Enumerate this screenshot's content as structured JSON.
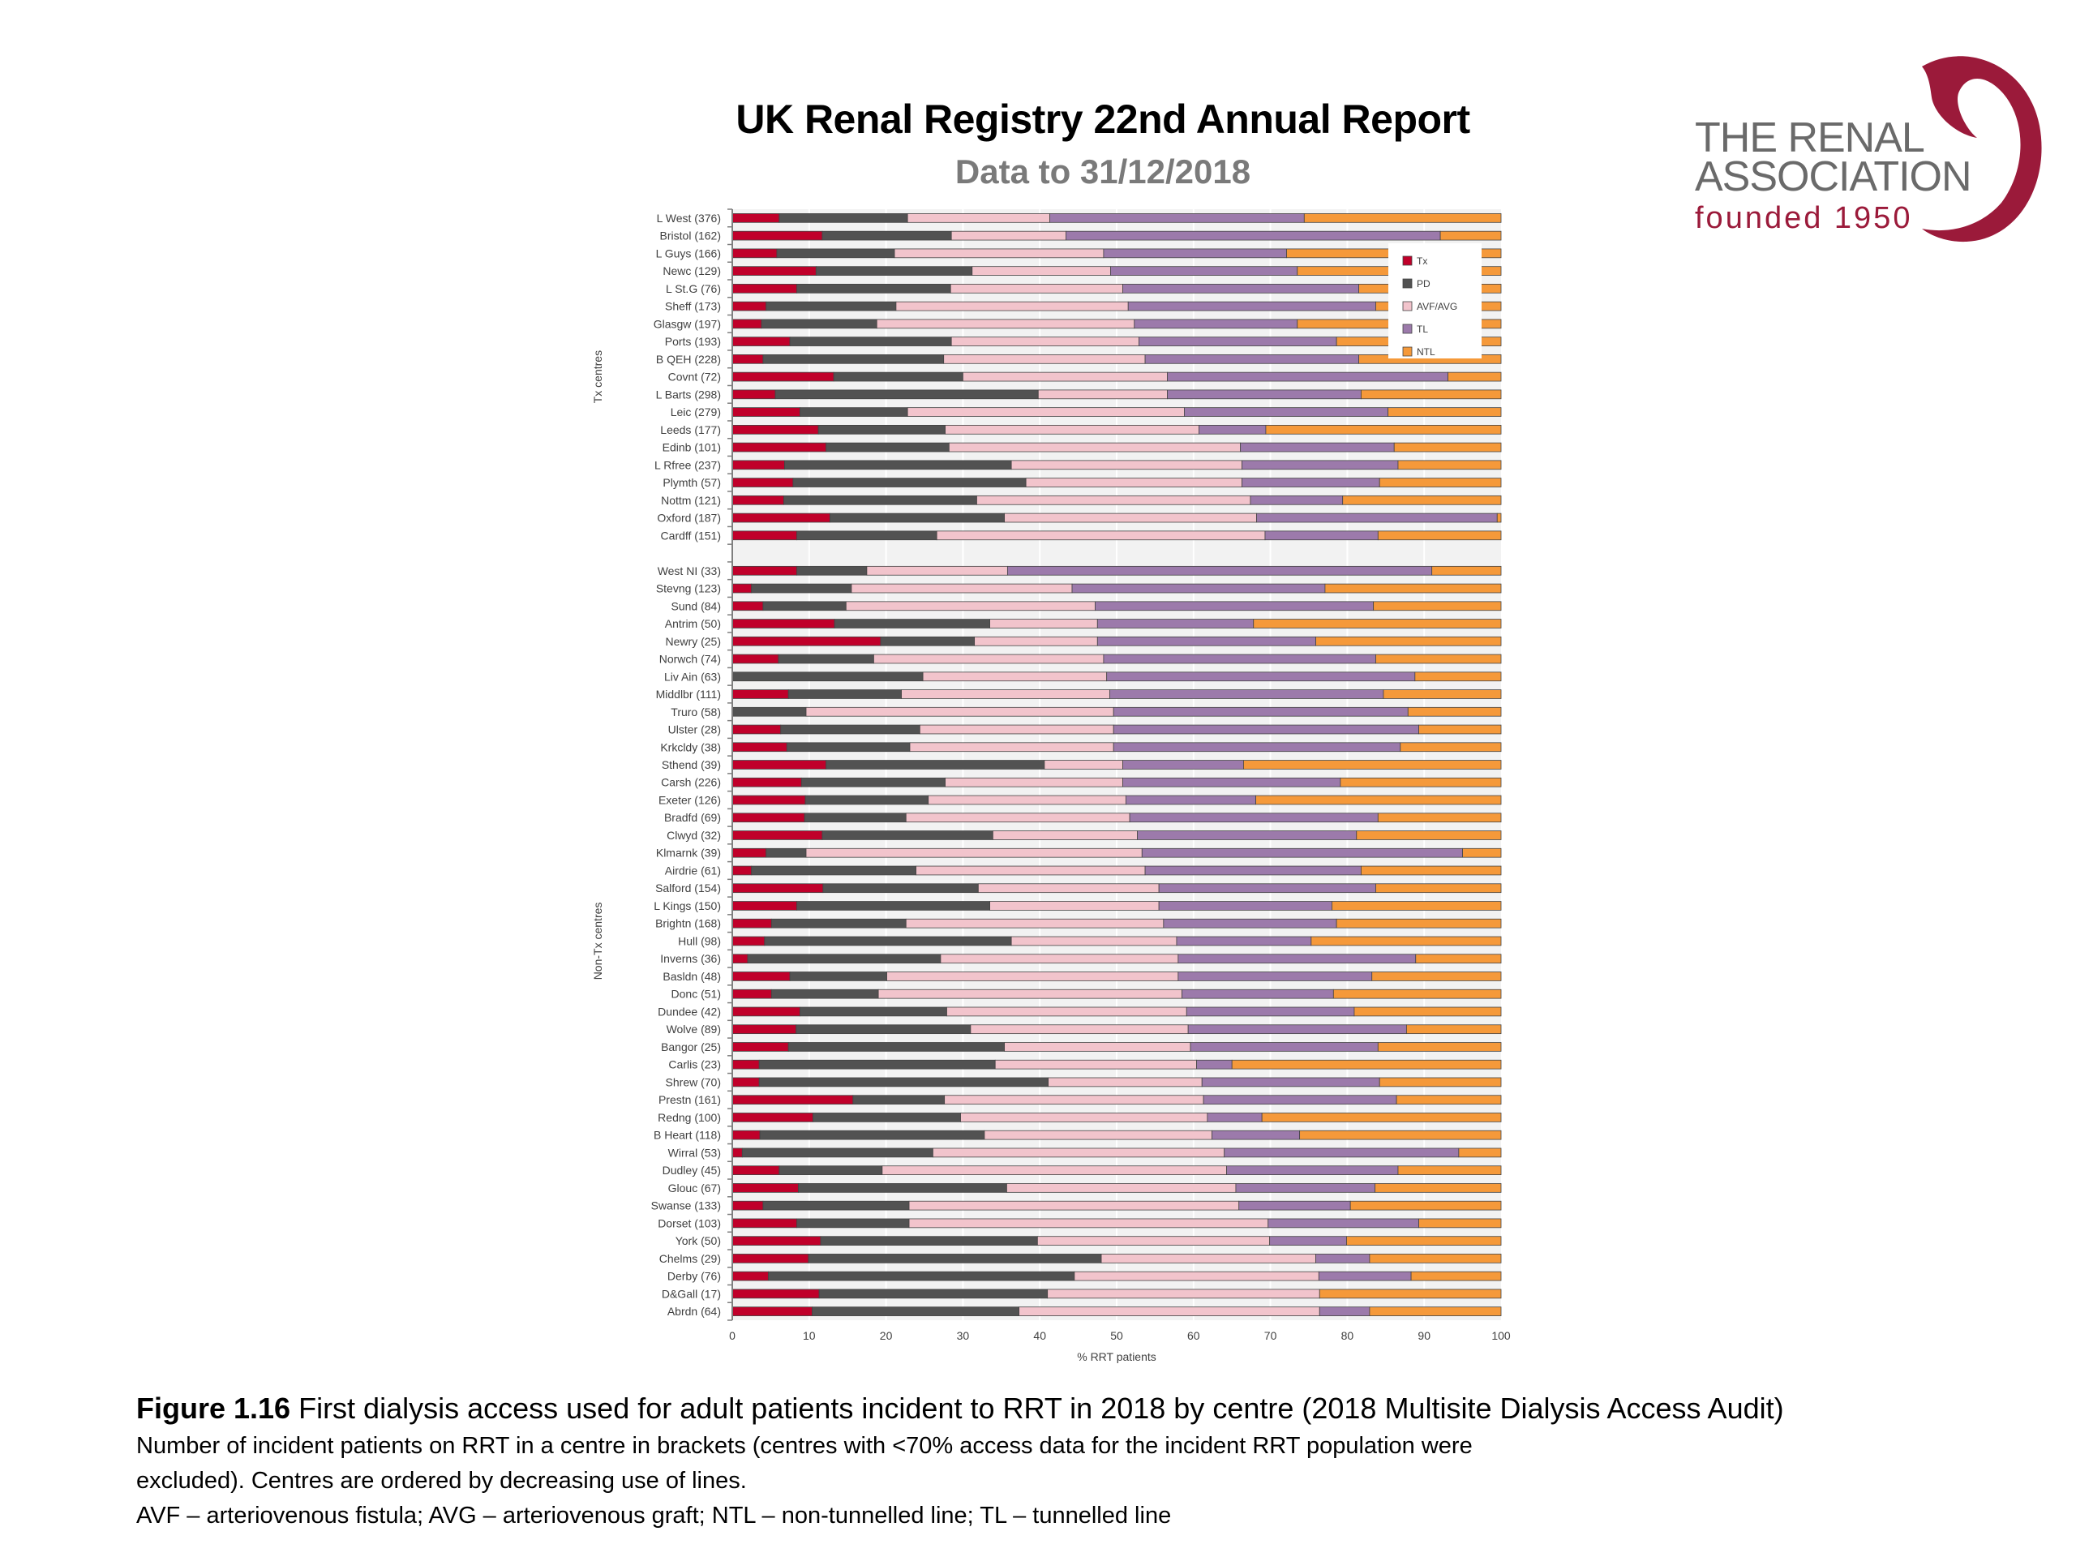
{
  "header": {
    "title": "UK Renal Registry 22nd Annual Report",
    "subtitle": "Data to 31/12/2018"
  },
  "logo": {
    "line1": "THE RENAL",
    "line2": "ASSOCIATION",
    "line3": "founded 1950",
    "icon": "kidney-swirl-icon",
    "brand_color": "#9b1a3a"
  },
  "caption": {
    "figure_label": "Figure 1.16",
    "figure_title": " First dialysis access used for adult patients incident to RRT in 2018 by centre (2018 Multisite Dialysis Access Audit)",
    "note_line1": "Number of incident patients on RRT in a centre in brackets (centres with <70% access data for the incident RRT population were",
    "note_line2": "excluded). Centres are ordered by decreasing use of lines.",
    "note_line3": "AVF – arteriovenous fistula; AVG – arteriovenous graft; NTL – non-tunnelled line; TL – tunnelled line"
  },
  "chart_data": {
    "type": "bar",
    "orientation": "horizontal",
    "stacked": true,
    "xlabel": "% RRT patients",
    "xlim": [
      0,
      100
    ],
    "xticks": [
      0,
      10,
      20,
      30,
      40,
      50,
      60,
      70,
      80,
      90,
      100
    ],
    "grid": true,
    "legend_position": "top-right",
    "series_names": [
      "Tx",
      "PD",
      "AVF/AVG",
      "TL",
      "NTL"
    ],
    "series_colors": [
      "#c0002a",
      "#525252",
      "#f2c4cc",
      "#9c7aab",
      "#f5993a"
    ],
    "groups": [
      {
        "label": "Tx centres",
        "categories": [
          "L West (376)",
          "Bristol (162)",
          "L Guys (166)",
          "Newc (129)",
          "L St.G (76)",
          "Sheff (173)",
          "Glasgw (197)",
          "Ports (193)",
          "B QEH (228)",
          "Covnt (72)",
          "L Barts (298)",
          "Leic (279)",
          "Leeds (177)",
          "Edinb (101)",
          "L Rfree (237)",
          "Plymth (57)",
          "Nottm (121)",
          "Oxford (187)",
          "Cardff (151)"
        ],
        "series": [
          {
            "name": "Tx",
            "values": [
              6.1,
              11.7,
              5.8,
              10.9,
              8.4,
              4.4,
              3.8,
              7.5,
              4.0,
              13.2,
              5.6,
              8.8,
              11.2,
              12.2,
              6.8,
              7.9,
              6.7,
              12.7,
              8.4
            ]
          },
          {
            "name": "PD",
            "values": [
              16.7,
              16.8,
              15.3,
              20.3,
              20.0,
              16.9,
              15.0,
              21.0,
              23.5,
              16.8,
              34.2,
              14.0,
              16.5,
              16.0,
              29.5,
              30.3,
              25.1,
              22.7,
              18.2
            ]
          },
          {
            "name": "AVF/AVG",
            "values": [
              18.5,
              14.9,
              27.2,
              18.0,
              22.4,
              30.2,
              33.5,
              24.4,
              26.2,
              26.6,
              16.8,
              36.0,
              33.0,
              37.9,
              30.0,
              28.1,
              35.6,
              32.8,
              42.7
            ]
          },
          {
            "name": "TL",
            "values": [
              33.1,
              48.7,
              23.8,
              24.3,
              30.7,
              32.2,
              21.2,
              25.7,
              27.8,
              36.5,
              25.2,
              26.5,
              8.7,
              20.0,
              20.3,
              17.9,
              12.0,
              31.3,
              14.7
            ]
          },
          {
            "name": "NTL",
            "values": [
              25.6,
              7.9,
              27.9,
              26.5,
              18.5,
              16.3,
              26.5,
              21.4,
              18.5,
              6.9,
              18.2,
              14.7,
              30.6,
              13.9,
              13.4,
              15.8,
              20.6,
              0.5,
              16.0
            ]
          }
        ]
      },
      {
        "label": "Non-Tx centres",
        "categories": [
          "West NI (33)",
          "Stevng (123)",
          "Sund (84)",
          "Antrim (50)",
          "Newry (25)",
          "Norwch (74)",
          "Liv Ain (63)",
          "Middlbr (111)",
          "Truro (58)",
          "Ulster (28)",
          "Krkcldy (38)",
          "Sthend (39)",
          "Carsh (226)",
          "Exeter (126)",
          "Bradfd (69)",
          "Clwyd (32)",
          "Klmarnk (39)",
          "Airdrie (61)",
          "Salford (154)",
          "L Kings (150)",
          "Brightn (168)",
          "Hull (98)",
          "Inverns (36)",
          "Basldn (48)",
          "Donc (51)",
          "Dundee (42)",
          "Wolve (89)",
          "Bangor (25)",
          "Carlis (23)",
          "Shrew (70)",
          "Prestn (161)",
          "Redng (100)",
          "B Heart (118)",
          "Wirral (53)",
          "Dudley (45)",
          "Glouc (67)",
          "Swanse (133)",
          "Dorset (103)",
          "York (50)",
          "Chelms (29)",
          "Derby (76)",
          "D&Gall (17)",
          "Abrdn (64)"
        ],
        "series": [
          {
            "name": "Tx",
            "values": [
              8.4,
              2.5,
              4.0,
              13.3,
              19.3,
              6.0,
              0.0,
              7.3,
              0.0,
              6.3,
              7.1,
              12.2,
              9.0,
              9.5,
              9.4,
              11.7,
              4.4,
              2.5,
              11.8,
              8.4,
              5.1,
              4.2,
              2.0,
              7.5,
              5.1,
              8.8,
              8.3,
              7.3,
              3.5,
              3.5,
              15.7,
              10.5,
              3.6,
              1.3,
              6.1,
              8.6,
              4.0,
              8.4,
              11.5,
              9.9,
              4.7,
              11.3,
              10.4
            ]
          },
          {
            "name": "PD",
            "values": [
              9.1,
              13.0,
              10.8,
              20.2,
              12.2,
              12.4,
              24.8,
              14.7,
              9.6,
              18.1,
              16.0,
              28.4,
              18.7,
              16.0,
              13.2,
              22.2,
              5.2,
              21.4,
              20.2,
              25.1,
              17.5,
              32.1,
              25.1,
              12.6,
              13.9,
              19.1,
              22.7,
              28.1,
              30.7,
              37.6,
              11.9,
              19.2,
              29.2,
              24.8,
              13.4,
              27.1,
              19.0,
              14.6,
              28.2,
              38.1,
              39.8,
              29.7,
              26.9
            ]
          },
          {
            "name": "AVF/AVG",
            "values": [
              18.3,
              28.7,
              32.4,
              14.0,
              16.0,
              29.9,
              23.9,
              27.1,
              40.0,
              25.2,
              26.5,
              10.2,
              23.1,
              25.7,
              29.1,
              18.8,
              43.7,
              29.8,
              23.5,
              22.0,
              33.5,
              21.5,
              30.9,
              37.9,
              39.5,
              31.2,
              28.3,
              24.2,
              26.2,
              20.0,
              33.7,
              32.1,
              29.6,
              37.9,
              44.8,
              29.8,
              42.9,
              46.7,
              30.2,
              27.9,
              31.8,
              35.4,
              39.1
            ]
          },
          {
            "name": "TL",
            "values": [
              55.2,
              32.9,
              36.2,
              20.3,
              28.4,
              35.4,
              40.1,
              35.6,
              38.3,
              39.7,
              37.3,
              15.7,
              28.3,
              16.9,
              32.3,
              28.5,
              41.7,
              28.1,
              28.2,
              22.5,
              22.5,
              17.5,
              30.9,
              25.2,
              19.7,
              21.8,
              28.4,
              24.4,
              4.6,
              23.1,
              25.1,
              7.1,
              11.4,
              30.5,
              22.3,
              18.1,
              14.5,
              19.6,
              10.0,
              7.0,
              12.0,
              0.0,
              6.5
            ]
          },
          {
            "name": "NTL",
            "values": [
              9.0,
              22.9,
              16.6,
              32.2,
              24.1,
              16.3,
              11.2,
              15.3,
              12.1,
              10.7,
              13.1,
              33.5,
              20.9,
              31.9,
              16.0,
              18.8,
              5.0,
              18.2,
              16.3,
              22.0,
              21.4,
              24.7,
              11.1,
              16.8,
              21.8,
              19.1,
              12.3,
              16.0,
              35.0,
              15.8,
              13.6,
              31.1,
              26.2,
              5.5,
              13.4,
              16.4,
              19.6,
              10.7,
              20.1,
              17.1,
              11.7,
              23.6,
              17.1
            ]
          }
        ]
      }
    ]
  }
}
